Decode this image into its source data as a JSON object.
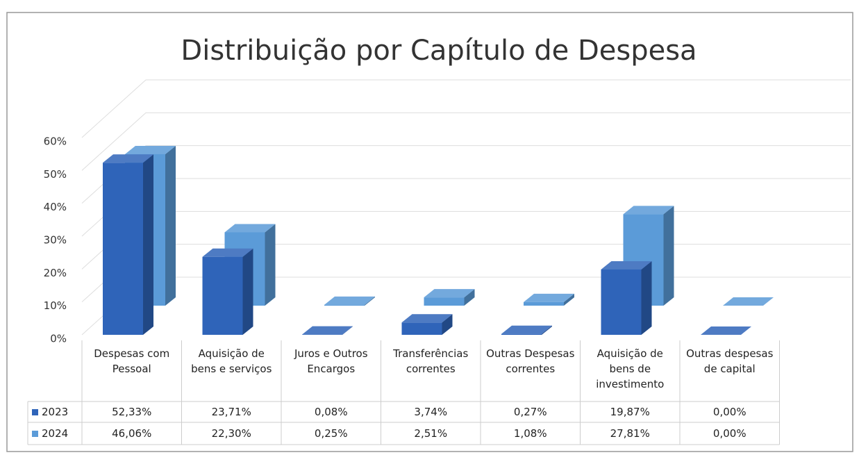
{
  "chart_data": {
    "type": "bar3d",
    "title": "Distribuição por Capítulo de Despesa",
    "categories": [
      "Despesas com Pessoal",
      "Aquisição de bens e serviços",
      "Juros e Outros Encargos",
      "Transferências correntes",
      "Outras Despesas correntes",
      "Aquisição de bens de investimento",
      "Outras despesas de capital"
    ],
    "series": [
      {
        "name": "2023",
        "color": "#2f64b9",
        "values": [
          52.33,
          23.71,
          0.08,
          3.74,
          0.27,
          19.87,
          0.0
        ],
        "value_labels": [
          "52,33%",
          "23,71%",
          "0,08%",
          "3,74%",
          "0,27%",
          "19,87%",
          "0,00%"
        ]
      },
      {
        "name": "2024",
        "color": "#5b9bd8",
        "values": [
          46.06,
          22.3,
          0.25,
          2.51,
          1.08,
          27.81,
          0.0
        ],
        "value_labels": [
          "46,06%",
          "22,30%",
          "0,25%",
          "2,51%",
          "1,08%",
          "27,81%",
          "0,00%"
        ]
      }
    ],
    "ylim": [
      0,
      60
    ],
    "yticks": [
      {
        "value": 0,
        "label": "0%"
      },
      {
        "value": 10,
        "label": "10%"
      },
      {
        "value": 20,
        "label": "20%"
      },
      {
        "value": 30,
        "label": "30%"
      },
      {
        "value": 40,
        "label": "40%"
      },
      {
        "value": 50,
        "label": "50%"
      },
      {
        "value": 60,
        "label": "60%"
      }
    ],
    "grid": true
  }
}
